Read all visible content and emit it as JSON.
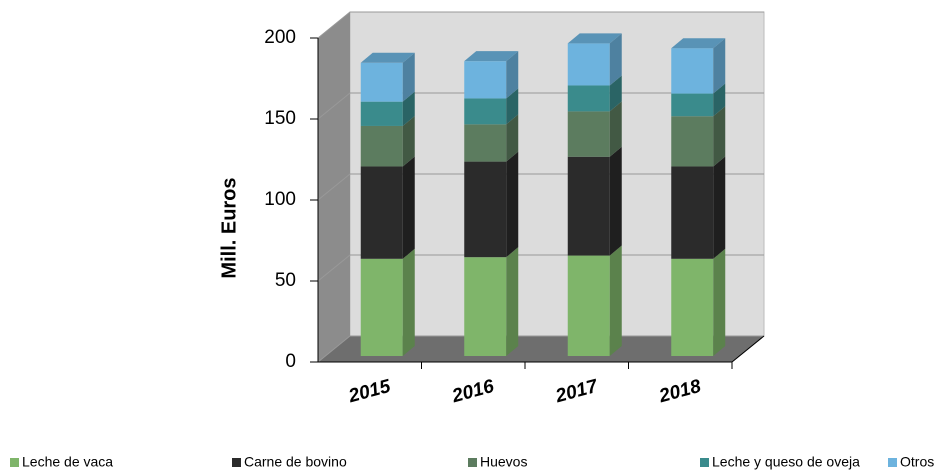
{
  "chart_data": {
    "type": "bar3d-stacked",
    "y_label": "Mill.  Euros",
    "categories": [
      "2015",
      "2016",
      "2017",
      "2018"
    ],
    "series": [
      {
        "name": "Leche de vaca",
        "color": "#7fb56a",
        "values": [
          60,
          61,
          62,
          60
        ]
      },
      {
        "name": "Carne de bovino",
        "color": "#2b2b2b",
        "values": [
          57,
          59,
          61,
          57
        ]
      },
      {
        "name": "Huevos",
        "color": "#5c7c5f",
        "values": [
          25,
          23,
          28,
          31
        ]
      },
      {
        "name": "Leche y queso de oveja",
        "color": "#3a8b8c",
        "values": [
          15,
          16,
          16,
          14
        ]
      },
      {
        "name": "Otros",
        "color": "#6db3de",
        "values": [
          24,
          23,
          26,
          28
        ]
      }
    ],
    "ylim": [
      0,
      200
    ],
    "yticks": [
      0,
      50,
      100,
      150,
      200
    ],
    "grid": true
  }
}
